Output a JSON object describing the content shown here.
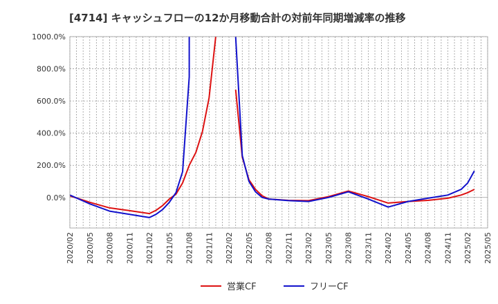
{
  "chart_data": {
    "type": "line",
    "title": "[4714]  キャッシュフローの12か月移動合計の対前年同期増減率の推移",
    "xlabel": "",
    "ylabel": "",
    "ylim": [
      -190,
      1000
    ],
    "yticks": [
      0,
      200,
      400,
      600,
      800,
      1000
    ],
    "ytick_labels": [
      "0.0%",
      "200.0%",
      "400.0%",
      "600.0%",
      "800.0%",
      "1000.0%"
    ],
    "x_start": "2020-02",
    "x_end": "2025-05",
    "xtick_labels": [
      "2020/02",
      "2020/05",
      "2020/08",
      "2020/11",
      "2021/02",
      "2021/05",
      "2021/08",
      "2021/11",
      "2022/02",
      "2022/05",
      "2022/08",
      "2022/11",
      "2023/02",
      "2023/05",
      "2023/08",
      "2023/11",
      "2024/02",
      "2024/05",
      "2024/08",
      "2024/11",
      "2025/02",
      "2025/05"
    ],
    "legend_position": "bottom",
    "series": [
      {
        "name": "営業CF",
        "color": "#dd1111",
        "points": [
          [
            "2020-02",
            10
          ],
          [
            "2020-05",
            -30
          ],
          [
            "2020-08",
            -65
          ],
          [
            "2020-11",
            -82
          ],
          [
            "2021-02",
            -100
          ],
          [
            "2021-03",
            -80
          ],
          [
            "2021-04",
            -50
          ],
          [
            "2021-05",
            -10
          ],
          [
            "2021-06",
            20
          ],
          [
            "2021-07",
            90
          ],
          [
            "2021-08",
            200
          ],
          [
            "2021-09",
            280
          ],
          [
            "2021-10",
            410
          ],
          [
            "2021-11",
            620
          ],
          [
            "2021-12",
            1010
          ],
          null,
          [
            "2022-03",
            670
          ],
          [
            "2022-04",
            250
          ],
          [
            "2022-05",
            110
          ],
          [
            "2022-06",
            50
          ],
          [
            "2022-07",
            10
          ],
          [
            "2022-08",
            -10
          ],
          [
            "2022-11",
            -18
          ],
          [
            "2023-02",
            -20
          ],
          [
            "2023-05",
            5
          ],
          [
            "2023-08",
            40
          ],
          [
            "2023-11",
            5
          ],
          [
            "2024-02",
            -35
          ],
          [
            "2024-05",
            -25
          ],
          [
            "2024-08",
            -18
          ],
          [
            "2024-11",
            -5
          ],
          [
            "2025-01",
            15
          ],
          [
            "2025-02",
            30
          ],
          [
            "2025-03",
            50
          ]
        ]
      },
      {
        "name": "フリーCF",
        "color": "#1111cc",
        "points": [
          [
            "2020-02",
            15
          ],
          [
            "2020-05",
            -40
          ],
          [
            "2020-08",
            -85
          ],
          [
            "2020-11",
            -105
          ],
          [
            "2021-02",
            -125
          ],
          [
            "2021-03",
            -105
          ],
          [
            "2021-04",
            -75
          ],
          [
            "2021-05",
            -30
          ],
          [
            "2021-06",
            30
          ],
          [
            "2021-07",
            160
          ],
          [
            "2021-08",
            750
          ],
          [
            "2021-08",
            1010
          ],
          null,
          [
            "2022-03",
            1010
          ],
          [
            "2022-04",
            260
          ],
          [
            "2022-05",
            100
          ],
          [
            "2022-06",
            35
          ],
          [
            "2022-07",
            0
          ],
          [
            "2022-08",
            -10
          ],
          [
            "2022-11",
            -20
          ],
          [
            "2023-02",
            -25
          ],
          [
            "2023-05",
            0
          ],
          [
            "2023-08",
            35
          ],
          [
            "2023-11",
            -10
          ],
          [
            "2024-02",
            -60
          ],
          [
            "2024-05",
            -25
          ],
          [
            "2024-08",
            -5
          ],
          [
            "2024-11",
            15
          ],
          [
            "2025-01",
            50
          ],
          [
            "2025-02",
            90
          ],
          [
            "2025-03",
            165
          ]
        ]
      }
    ]
  }
}
